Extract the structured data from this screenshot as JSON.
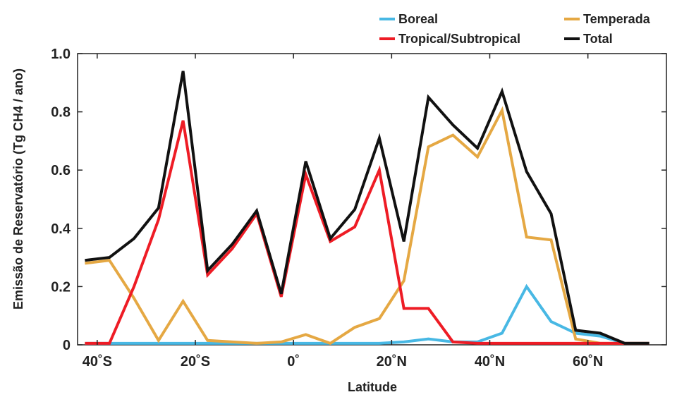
{
  "chart_data": {
    "type": "line",
    "xlabel": "Latitude",
    "ylabel": "Emissão de Reservatório (Tg CH4 / ano)",
    "xlim": [
      -44,
      76
    ],
    "ylim": [
      0,
      1.0
    ],
    "x_ticks": [
      {
        "value": -40,
        "label": "40˚S"
      },
      {
        "value": -20,
        "label": "20˚S"
      },
      {
        "value": 0,
        "label": "0˚"
      },
      {
        "value": 20,
        "label": "20˚N"
      },
      {
        "value": 40,
        "label": "40˚N"
      },
      {
        "value": 60,
        "label": "60˚N"
      }
    ],
    "y_ticks": [
      {
        "value": 0,
        "label": "0"
      },
      {
        "value": 0.2,
        "label": "0.2"
      },
      {
        "value": 0.4,
        "label": "0.4"
      },
      {
        "value": 0.6,
        "label": "0.6"
      },
      {
        "value": 0.8,
        "label": "0.8"
      },
      {
        "value": 1.0,
        "label": "1.0"
      }
    ],
    "x": [
      -42.5,
      -37.5,
      -32.5,
      -27.5,
      -22.5,
      -17.5,
      -12.5,
      -7.5,
      -2.5,
      2.5,
      7.5,
      12.5,
      17.5,
      22.5,
      27.5,
      32.5,
      37.5,
      42.5,
      47.5,
      52.5,
      57.5,
      62.5,
      67.5,
      72.5
    ],
    "series": [
      {
        "name": "Boreal",
        "color": "#48b8e4",
        "values": [
          0.005,
          0.005,
          0.005,
          0.005,
          0.005,
          0.005,
          0.005,
          0.005,
          0.005,
          0.005,
          0.005,
          0.005,
          0.005,
          0.01,
          0.02,
          0.01,
          0.01,
          0.04,
          0.2,
          0.08,
          0.04,
          0.03,
          0.005,
          0.005
        ]
      },
      {
        "name": "Temperada",
        "color": "#e5a843",
        "values": [
          0.28,
          0.29,
          0.16,
          0.015,
          0.15,
          0.015,
          0.01,
          0.005,
          0.01,
          0.035,
          0.005,
          0.06,
          0.09,
          0.22,
          0.68,
          0.72,
          0.645,
          0.805,
          0.37,
          0.36,
          0.02,
          0.005,
          0.005,
          0.005
        ]
      },
      {
        "name": "Tropical/Subtropical",
        "color": "#ee1c25",
        "values": [
          0.005,
          0.005,
          0.2,
          0.43,
          0.77,
          0.24,
          0.33,
          0.45,
          0.165,
          0.585,
          0.355,
          0.405,
          0.6,
          0.125,
          0.125,
          0.01,
          0.005,
          0.005,
          0.005,
          0.005,
          0.005,
          0.005,
          0.005,
          0.005
        ]
      },
      {
        "name": "Total",
        "color": "#111111",
        "values": [
          0.29,
          0.3,
          0.365,
          0.47,
          0.94,
          0.255,
          0.345,
          0.46,
          0.175,
          0.63,
          0.365,
          0.465,
          0.71,
          0.355,
          0.85,
          0.755,
          0.675,
          0.87,
          0.595,
          0.45,
          0.05,
          0.04,
          0.005,
          0.005
        ]
      }
    ],
    "legend": {
      "placement": "top-right",
      "items": [
        {
          "name": "Boreal",
          "color": "#48b8e4"
        },
        {
          "name": "Temperada",
          "color": "#e5a843"
        },
        {
          "name": "Tropical/Subtropical",
          "color": "#ee1c25"
        },
        {
          "name": "Total",
          "color": "#111111"
        }
      ]
    },
    "grid": false
  }
}
